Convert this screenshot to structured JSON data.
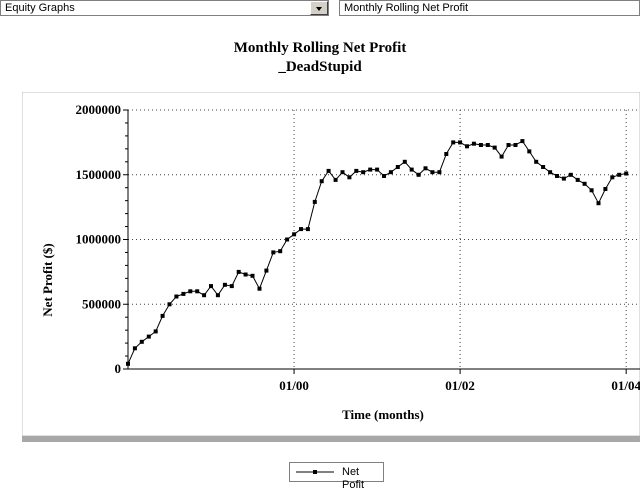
{
  "toolbar": {
    "left_combo": "Equity Graphs",
    "right_combo": "Monthly Rolling Net Profit"
  },
  "chart_data": {
    "type": "line",
    "title": "Monthly Rolling Net Profit",
    "subtitle": "_DeadStupid",
    "xlabel": "Time (months)",
    "ylabel": "Net Profit ($)",
    "ylim": [
      0,
      2000000
    ],
    "yticks": [
      0,
      500000,
      1000000,
      1500000,
      2000000
    ],
    "ytick_labels": [
      "0",
      "500000",
      "1000000",
      "1500000",
      "2000000"
    ],
    "xticks": [
      {
        "label": "01/00",
        "index": 24
      },
      {
        "label": "01/02",
        "index": 48
      },
      {
        "label": "01/04",
        "index": 72
      }
    ],
    "xlim": [
      0,
      74
    ],
    "grid": true,
    "legend": "bottom-center",
    "series": [
      {
        "name": "Net Pofit",
        "color": "#000000",
        "values": [
          40000,
          160000,
          210000,
          250000,
          290000,
          410000,
          500000,
          560000,
          580000,
          600000,
          600000,
          570000,
          640000,
          570000,
          650000,
          640000,
          750000,
          730000,
          720000,
          620000,
          760000,
          900000,
          910000,
          1000000,
          1040000,
          1080000,
          1080000,
          1290000,
          1450000,
          1530000,
          1460000,
          1520000,
          1480000,
          1530000,
          1520000,
          1540000,
          1540000,
          1490000,
          1520000,
          1560000,
          1600000,
          1540000,
          1500000,
          1550000,
          1520000,
          1520000,
          1660000,
          1750000,
          1750000,
          1720000,
          1740000,
          1730000,
          1730000,
          1710000,
          1640000,
          1730000,
          1730000,
          1760000,
          1680000,
          1600000,
          1560000,
          1520000,
          1490000,
          1470000,
          1500000,
          1460000,
          1430000,
          1380000,
          1280000,
          1390000,
          1480000,
          1500000,
          1510000
        ]
      }
    ]
  }
}
